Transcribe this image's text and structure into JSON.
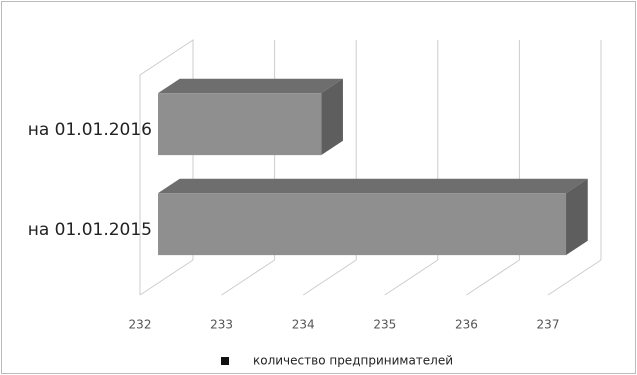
{
  "chart_data": {
    "type": "bar3d-horizontal",
    "categories": [
      "на 01.01.2015",
      "на 01.01.2016"
    ],
    "series": [
      {
        "name": "количество предпринимателей",
        "color": "#8f8f8f",
        "values": [
          237,
          234
        ]
      }
    ],
    "xlim": [
      232,
      237
    ],
    "xticks": [
      232,
      233,
      234,
      235,
      236,
      237
    ],
    "grid": true,
    "legend": "bottom"
  }
}
